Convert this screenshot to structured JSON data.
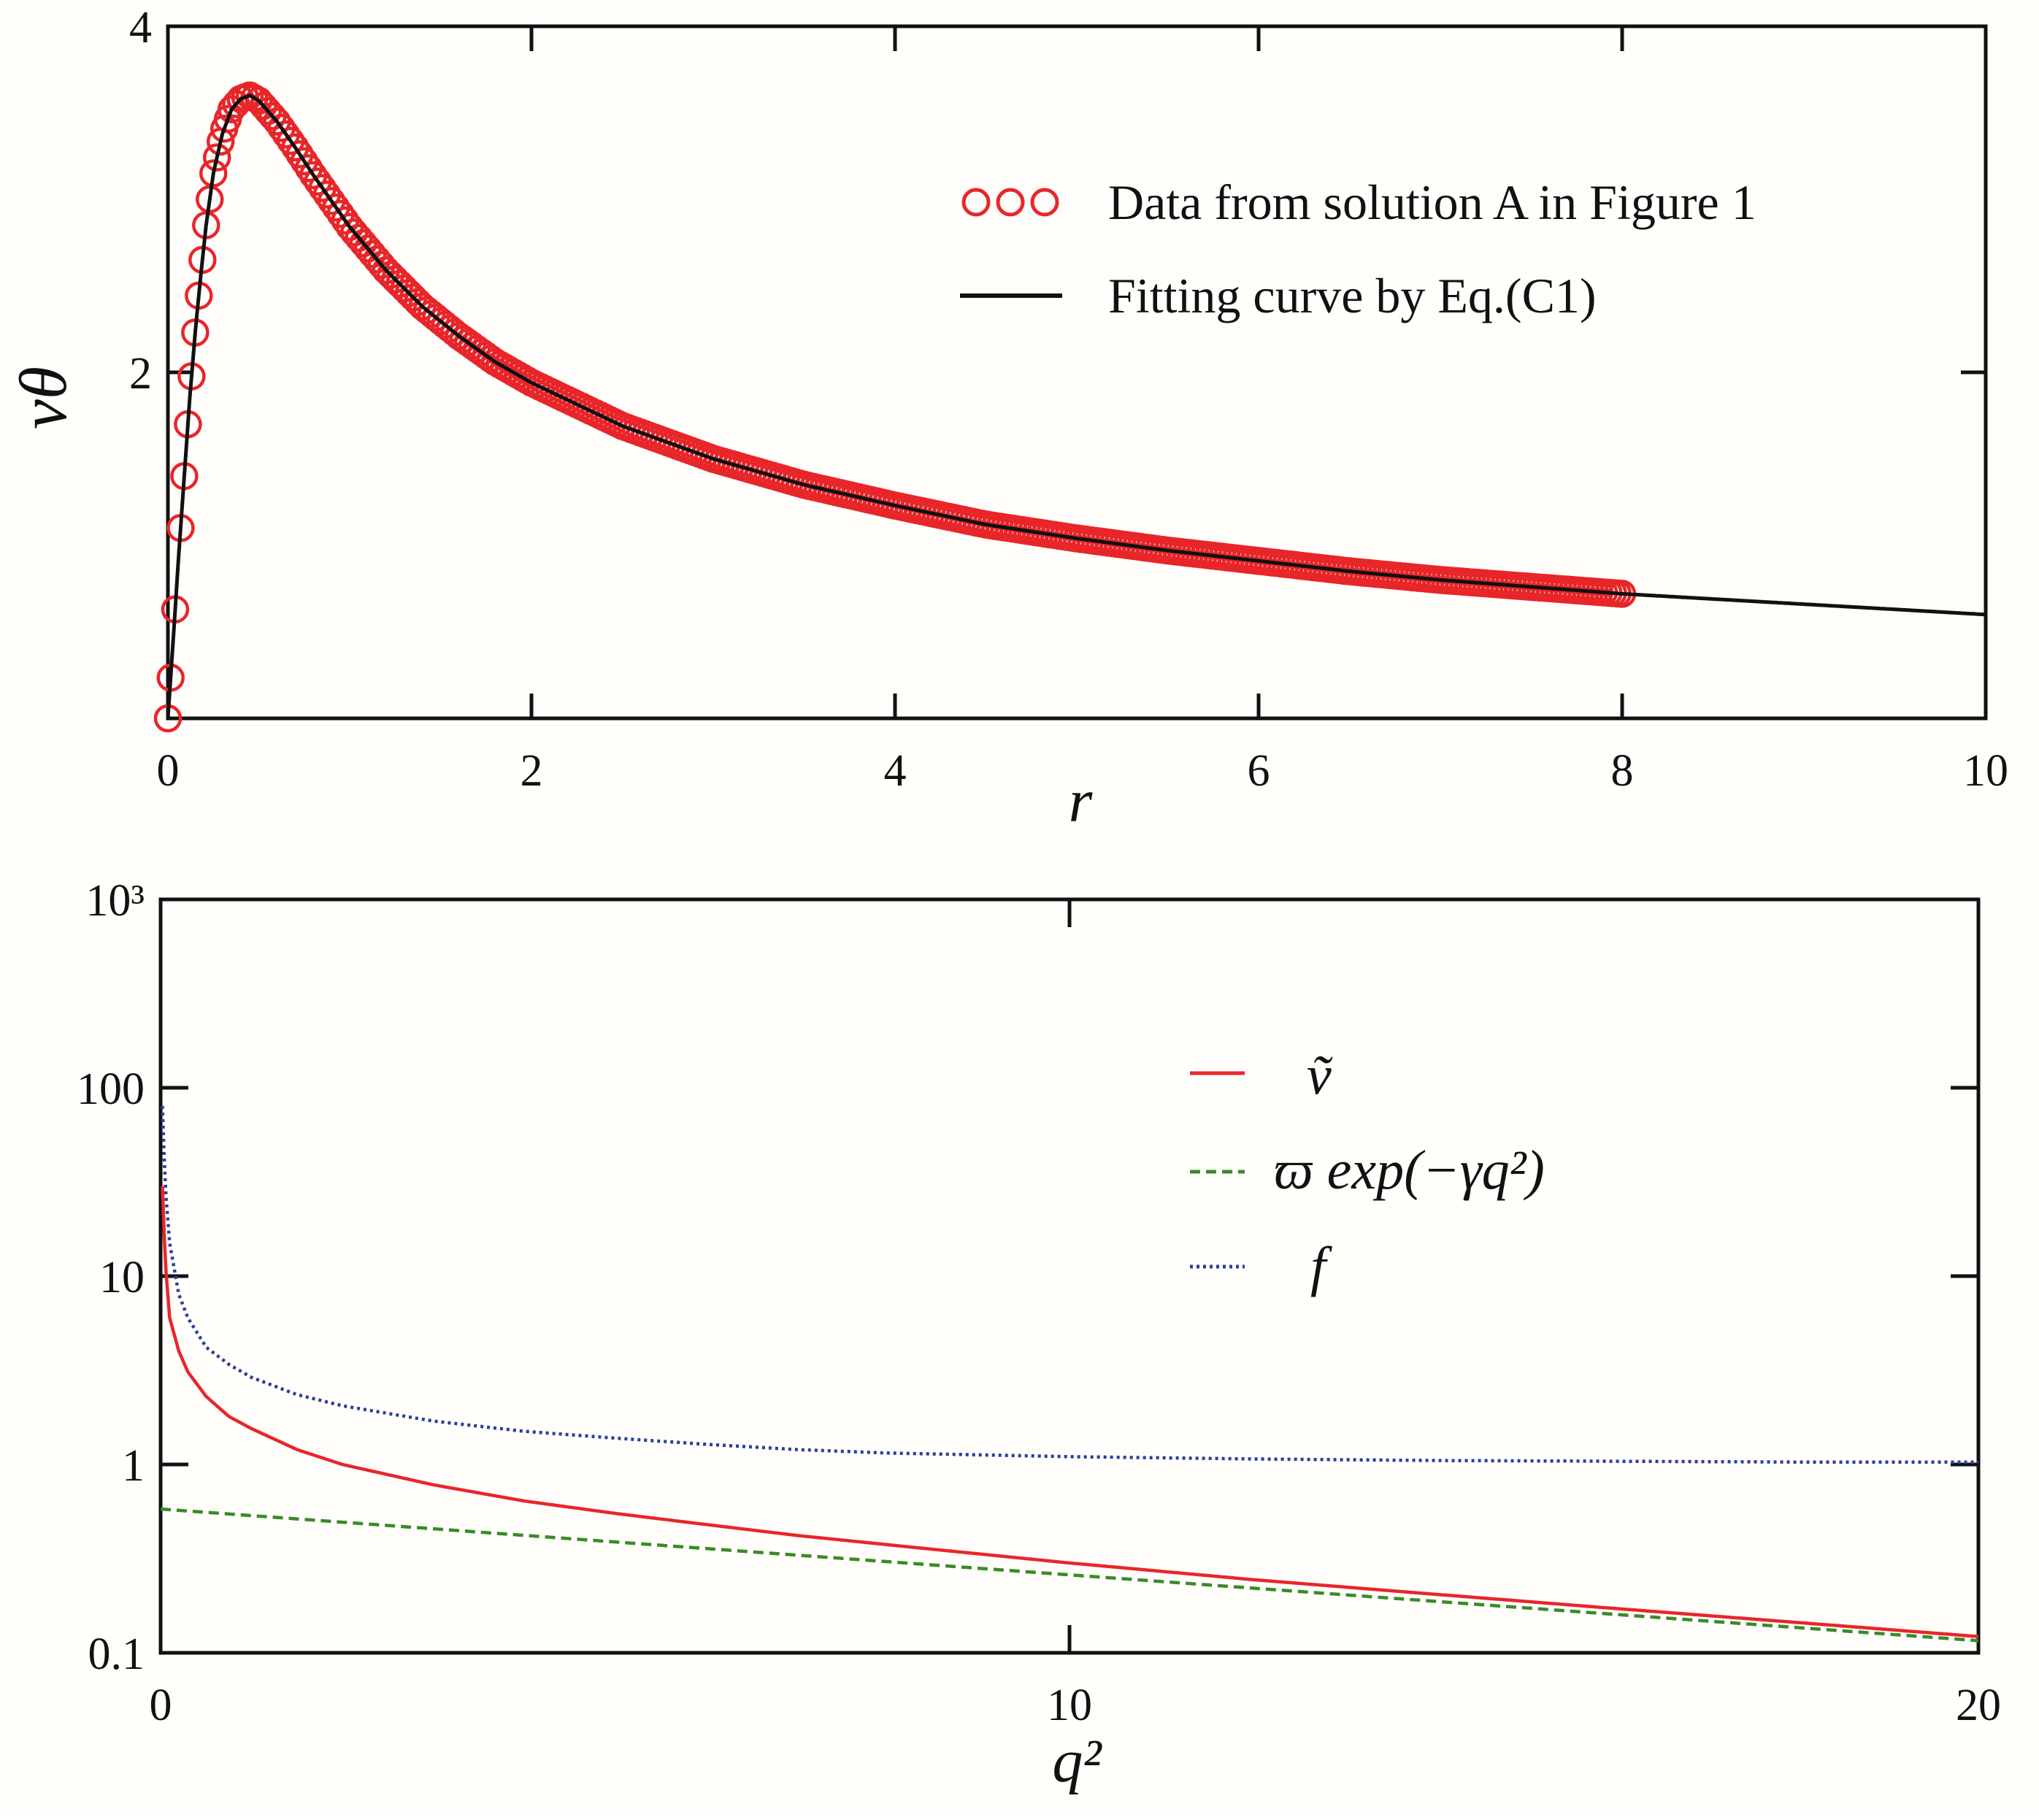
{
  "chart_data": [
    {
      "type": "line",
      "xlabel": "r",
      "ylabel": "vθ",
      "xlim": [
        0,
        10
      ],
      "ylim": [
        0,
        4
      ],
      "x_ticks": [
        0,
        2,
        4,
        6,
        8,
        10
      ],
      "y_ticks": [
        2,
        4
      ],
      "x_tick_labels": [
        "0",
        "2",
        "4",
        "6",
        "8",
        "10"
      ],
      "y_tick_labels": [
        "2",
        "4"
      ],
      "grid": false,
      "legend_position": "top-right",
      "series": [
        {
          "name": "Data from solution A in Figure 1",
          "style": "markers",
          "marker": "open-circle",
          "color": "#e8262a",
          "x": [
            0.0,
            0.03,
            0.06,
            0.09,
            0.12,
            0.15,
            0.18,
            0.21,
            0.25,
            0.3,
            0.35,
            0.4,
            0.45,
            0.5,
            0.6,
            0.7,
            0.8,
            0.9,
            1.0,
            1.2,
            1.4,
            1.6,
            1.8,
            2.0,
            2.5,
            3.0,
            3.5,
            4.0,
            4.5,
            5.0,
            5.5,
            6.0,
            6.5,
            7.0,
            7.5,
            8.0
          ],
          "y": [
            0.0,
            0.47,
            0.95,
            1.4,
            1.85,
            2.23,
            2.55,
            2.85,
            3.15,
            3.38,
            3.52,
            3.58,
            3.6,
            3.57,
            3.45,
            3.3,
            3.14,
            2.99,
            2.84,
            2.59,
            2.38,
            2.21,
            2.06,
            1.94,
            1.69,
            1.5,
            1.35,
            1.23,
            1.12,
            1.04,
            0.97,
            0.91,
            0.85,
            0.8,
            0.76,
            0.72
          ]
        },
        {
          "name": "Fitting curve by Eq.(C1)",
          "style": "solid",
          "color": "#111111",
          "x": [
            0.0,
            0.03,
            0.06,
            0.09,
            0.12,
            0.15,
            0.18,
            0.21,
            0.25,
            0.3,
            0.35,
            0.4,
            0.45,
            0.5,
            0.6,
            0.7,
            0.8,
            0.9,
            1.0,
            1.2,
            1.4,
            1.6,
            1.8,
            2.0,
            2.5,
            3.0,
            3.5,
            4.0,
            4.5,
            5.0,
            5.5,
            6.0,
            6.5,
            7.0,
            7.5,
            8.0,
            8.5,
            9.0,
            9.5,
            10.0
          ],
          "y": [
            0.0,
            0.47,
            0.95,
            1.4,
            1.85,
            2.23,
            2.55,
            2.85,
            3.15,
            3.38,
            3.52,
            3.58,
            3.6,
            3.57,
            3.45,
            3.3,
            3.14,
            2.99,
            2.84,
            2.59,
            2.38,
            2.21,
            2.06,
            1.94,
            1.69,
            1.5,
            1.35,
            1.23,
            1.12,
            1.04,
            0.97,
            0.91,
            0.85,
            0.8,
            0.76,
            0.72,
            0.69,
            0.66,
            0.63,
            0.6
          ]
        }
      ]
    },
    {
      "type": "line",
      "xlabel": "q²",
      "ylabel": "",
      "xlim": [
        0,
        20
      ],
      "ylim": [
        0.1,
        1000
      ],
      "y_scale": "log",
      "x_ticks": [
        0,
        10,
        20
      ],
      "y_ticks": [
        0.1,
        1,
        10,
        100,
        1000
      ],
      "x_tick_labels": [
        "0",
        "10",
        "20"
      ],
      "y_tick_labels": [
        "0.1",
        "1",
        "10",
        "100",
        "10³"
      ],
      "grid": false,
      "legend_position": "top-right",
      "series": [
        {
          "name": "ṽ",
          "style": "solid",
          "color": "#e8262a",
          "x": [
            0.02,
            0.05,
            0.1,
            0.2,
            0.3,
            0.5,
            0.75,
            1.0,
            1.5,
            2.0,
            3.0,
            4.0,
            5.0,
            6.0,
            7.0,
            8.0,
            10.0,
            12.0,
            14.0,
            16.0,
            18.0,
            20.0
          ],
          "y": [
            30,
            12,
            6.0,
            4.0,
            3.1,
            2.3,
            1.8,
            1.55,
            1.2,
            1.0,
            0.78,
            0.64,
            0.55,
            0.48,
            0.42,
            0.375,
            0.3,
            0.245,
            0.205,
            0.172,
            0.145,
            0.122
          ]
        },
        {
          "name": "ϖ exp(−γq²)",
          "style": "dashed",
          "color": "#3a8a2a",
          "x": [
            0.0,
            20.0
          ],
          "y": [
            0.58,
            0.116
          ]
        },
        {
          "name": "f",
          "style": "dotted",
          "color": "#2a3f9a",
          "x": [
            0.02,
            0.05,
            0.1,
            0.2,
            0.3,
            0.5,
            0.75,
            1.0,
            1.5,
            2.0,
            3.0,
            4.0,
            5.0,
            6.0,
            7.0,
            8.0,
            10.0,
            12.0,
            14.0,
            16.0,
            18.0,
            20.0
          ],
          "y": [
            80,
            30,
            15,
            8.0,
            6.0,
            4.2,
            3.4,
            2.9,
            2.35,
            2.05,
            1.7,
            1.5,
            1.38,
            1.28,
            1.2,
            1.15,
            1.1,
            1.07,
            1.05,
            1.04,
            1.03,
            1.03
          ]
        }
      ]
    }
  ],
  "legend_top": {
    "data_label": "Data from solution A in Figure 1",
    "fit_label": "Fitting curve by Eq.(C1)"
  },
  "legend_bottom": {
    "v_label": "ṽ",
    "exp_label": "ϖ exp(−γq²)",
    "f_label": "f"
  },
  "colors": {
    "red": "#e8262a",
    "green": "#3a8a2a",
    "blue": "#2a3f9a",
    "black": "#111111"
  }
}
